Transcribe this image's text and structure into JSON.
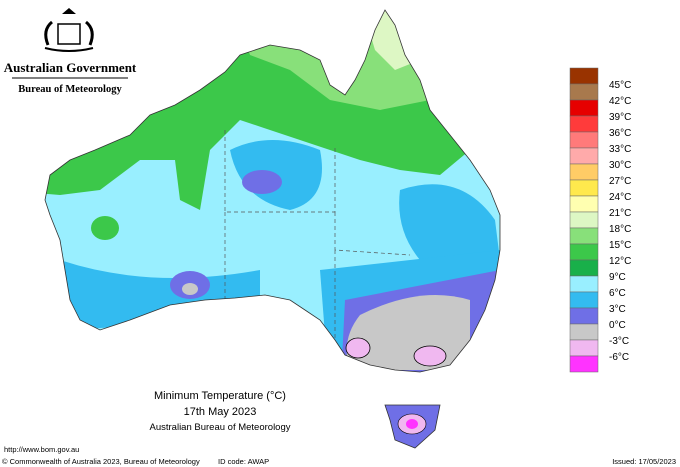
{
  "header": {
    "government": "Australian Government",
    "agency": "Bureau of Meteorology"
  },
  "legend": {
    "items": [
      {
        "label": "45°C",
        "color": "#a8794d"
      },
      {
        "label": "42°C",
        "color": "#e60000"
      },
      {
        "label": "39°C",
        "color": "#ff3b3b"
      },
      {
        "label": "36°C",
        "color": "#ff7a7a"
      },
      {
        "label": "33°C",
        "color": "#ffaaaa"
      },
      {
        "label": "30°C",
        "color": "#ffcc66"
      },
      {
        "label": "27°C",
        "color": "#ffe94d"
      },
      {
        "label": "24°C",
        "color": "#ffffb0"
      },
      {
        "label": "21°C",
        "color": "#ddf7c4"
      },
      {
        "label": "18°C",
        "color": "#88e07a"
      },
      {
        "label": "15°C",
        "color": "#3cc84a"
      },
      {
        "label": "12°C",
        "color": "#19b04a"
      },
      {
        "label": "9°C",
        "color": "#99efff"
      },
      {
        "label": "6°C",
        "color": "#33bbf0"
      },
      {
        "label": "3°C",
        "color": "#6f6fe6"
      },
      {
        "label": "0°C",
        "color": "#c8c8c8"
      },
      {
        "label": "-3°C",
        "color": "#f0b8f0"
      },
      {
        "label": "-6°C",
        "color": "#ff33ff"
      }
    ]
  },
  "caption": {
    "title": "Minimum Temperature (°C)",
    "date": "17th May 2023",
    "source": "Australian Bureau of Meteorology"
  },
  "footer": {
    "url": "http://www.bom.gov.au",
    "copyright": "© Commonwealth of Australia 2023, Bureau of Meteorology",
    "id_code": "ID code: AWAP",
    "issued": "Issued: 17/05/2023"
  }
}
